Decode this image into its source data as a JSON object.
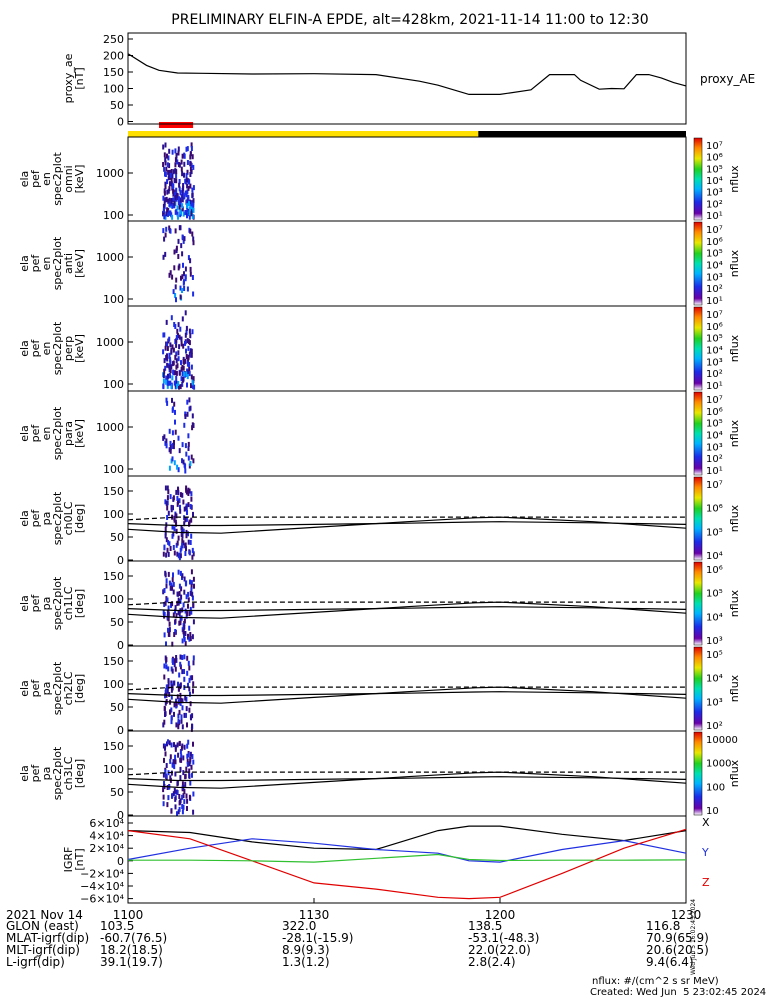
{
  "title": "PRELIMINARY ELFIN-A EPDE, alt=428km, 2021-11-14 11:00 to 12:30",
  "footer": {
    "units": "nflux: #/(cm^2 s sr MeV)",
    "created": "Created: Wed Jun  5 23:02:45 2024",
    "side_stamp": "Wed Jun  5 16:02:45 2024"
  },
  "time_axis": {
    "date_label": "2021 Nov 14",
    "ticks": [
      "1100",
      "1130",
      "1200",
      "1230"
    ],
    "rows": [
      {
        "label": "GLON (east)",
        "values": [
          "103.5",
          "322.0",
          "138.5",
          "116.8"
        ]
      },
      {
        "label": "MLAT-igrf(dip)",
        "values": [
          "-60.7(76.5)",
          "-28.1(-15.9)",
          "-53.1(-48.3)",
          "70.9(65.9)"
        ]
      },
      {
        "label": "MLT-igrf(dip)",
        "values": [
          "18.2(18.5)",
          "8.9(9.3)",
          "22.0(22.0)",
          "20.6(20.5)"
        ]
      },
      {
        "label": "L-igrf(dip)",
        "values": [
          "39.1(19.7)",
          "1.3(1.2)",
          "2.8(2.4)",
          "9.4(6.4)"
        ]
      }
    ]
  },
  "colors": {
    "sunlight_bar": "#ffe000",
    "shadow_bar": "#000000",
    "science_zone_bar": "#ff0000",
    "igrf_x": "#000000",
    "igrf_y": "#2030e0",
    "igrf_z": "#e00000",
    "igrf_total": "#30c030"
  },
  "panels": [
    {
      "id": "proxy_ae",
      "ylabel": [
        "proxy_ae",
        "[nT]"
      ],
      "right_label": "proxy_AE",
      "yticks": [
        "250",
        "200",
        "150",
        "100",
        "50",
        "0"
      ]
    },
    {
      "id": "en_omni",
      "ylabel": [
        "ela",
        "pef",
        "en",
        "spec2plot",
        "omni",
        "[keV]"
      ],
      "yticks": [
        "1000",
        "100"
      ],
      "cbar_label": "nflux",
      "cbar_ticks": [
        "10⁷",
        "10⁶",
        "10⁵",
        "10⁴",
        "10³",
        "10²",
        "10¹"
      ]
    },
    {
      "id": "en_anti",
      "ylabel": [
        "ela",
        "pef",
        "en",
        "spec2plot",
        "anti",
        "[keV]"
      ],
      "yticks": [
        "1000",
        "100"
      ],
      "cbar_label": "nflux",
      "cbar_ticks": [
        "10⁷",
        "10⁶",
        "10⁵",
        "10⁴",
        "10³",
        "10²",
        "10¹"
      ]
    },
    {
      "id": "en_perp",
      "ylabel": [
        "ela",
        "pef",
        "en",
        "spec2plot",
        "perp",
        "[keV]"
      ],
      "yticks": [
        "1000",
        "100"
      ],
      "cbar_label": "nflux",
      "cbar_ticks": [
        "10⁷",
        "10⁶",
        "10⁵",
        "10⁴",
        "10³",
        "10²",
        "10¹"
      ]
    },
    {
      "id": "en_para",
      "ylabel": [
        "ela",
        "pef",
        "en",
        "spec2plot",
        "para",
        "[keV]"
      ],
      "yticks": [
        "1000",
        "100"
      ],
      "cbar_label": "nflux",
      "cbar_ticks": [
        "10⁷",
        "10⁶",
        "10⁵",
        "10⁴",
        "10³",
        "10²",
        "10¹"
      ]
    },
    {
      "id": "pa_ch0",
      "ylabel": [
        "ela",
        "pef",
        "pa",
        "spec2plot",
        "ch0LC",
        "[deg]"
      ],
      "yticks": [
        "150",
        "100",
        "50",
        "0"
      ],
      "cbar_label": "nflux",
      "cbar_ticks": [
        "10⁷",
        "10⁶",
        "10⁵",
        "10⁴"
      ]
    },
    {
      "id": "pa_ch1",
      "ylabel": [
        "ela",
        "pef",
        "pa",
        "spec2plot",
        "ch1LC",
        "[deg]"
      ],
      "yticks": [
        "150",
        "100",
        "50",
        "0"
      ],
      "cbar_label": "nflux",
      "cbar_ticks": [
        "10⁶",
        "10⁵",
        "10⁴",
        "10³"
      ]
    },
    {
      "id": "pa_ch2",
      "ylabel": [
        "ela",
        "pef",
        "pa",
        "spec2plot",
        "ch2LC",
        "[deg]"
      ],
      "yticks": [
        "150",
        "100",
        "50",
        "0"
      ],
      "cbar_label": "nflux",
      "cbar_ticks": [
        "10⁵",
        "10⁴",
        "10³",
        "10²"
      ]
    },
    {
      "id": "pa_ch3",
      "ylabel": [
        "ela",
        "pef",
        "pa",
        "spec2plot",
        "ch3LC",
        "[deg]"
      ],
      "yticks": [
        "150",
        "100",
        "50",
        "0"
      ],
      "cbar_label": "nflux",
      "cbar_ticks": [
        "10000",
        "1000",
        "100",
        "10"
      ]
    },
    {
      "id": "igrf",
      "ylabel": [
        "IGRF",
        "[nT]"
      ],
      "yticks": [
        "6×10⁴",
        "4×10⁴",
        "2×10⁴",
        "0",
        "−2×10⁴",
        "−4×10⁴",
        "−6×10⁴"
      ],
      "legend": [
        "X",
        "Y",
        "Z"
      ]
    }
  ],
  "chart_data": [
    {
      "type": "line",
      "title": "PRELIMINARY ELFIN-A EPDE, alt=428km, 2021-11-14 11:00 to 12:30",
      "ylabel": "proxy_ae [nT]",
      "ylim": [
        0,
        250
      ],
      "x_unit": "minutes after 11:00",
      "x": [
        0,
        3,
        5,
        8,
        12,
        20,
        30,
        40,
        47,
        50,
        55,
        60,
        65,
        68,
        70,
        72,
        73,
        76,
        78,
        80,
        82,
        84,
        86,
        88,
        90
      ],
      "values": [
        205,
        170,
        155,
        147,
        146,
        144,
        145,
        142,
        122,
        110,
        82,
        82,
        96,
        142,
        142,
        142,
        125,
        98,
        100,
        99,
        142,
        142,
        132,
        118,
        108
      ],
      "series": [
        {
          "name": "proxy_AE"
        }
      ]
    },
    {
      "type": "line",
      "title": "IGRF [nT]",
      "x_unit": "minutes after 11:00",
      "ylim": [
        -60000,
        60000
      ],
      "x": [
        0,
        10,
        20,
        30,
        40,
        50,
        55,
        60,
        70,
        80,
        90
      ],
      "series": [
        {
          "name": "X",
          "values": [
            48000,
            45000,
            30000,
            20000,
            18000,
            48000,
            55000,
            55000,
            42000,
            32000,
            48000
          ]
        },
        {
          "name": "Y",
          "values": [
            2000,
            20000,
            35000,
            28000,
            18000,
            12000,
            0,
            -2000,
            18000,
            32000,
            12000
          ]
        },
        {
          "name": "Z",
          "values": [
            48000,
            35000,
            0,
            -35000,
            -45000,
            -58000,
            -60000,
            -58000,
            -20000,
            20000,
            50000
          ]
        },
        {
          "values": [
            1000,
            1000,
            0,
            -2000,
            4000,
            10000,
            2000,
            500,
            1000,
            1000,
            1500
          ]
        }
      ]
    },
    {
      "type": "line",
      "title": "pitch-angle loss/anti-loss cone [deg]",
      "x_unit": "minutes after 11:00",
      "ylim": [
        0,
        180
      ],
      "x": [
        0,
        8,
        15,
        30,
        45,
        56,
        60,
        75,
        90
      ],
      "series": [
        {
          "values": [
            105,
            112,
            112,
            112,
            112,
            112,
            112,
            112,
            112
          ]
        },
        {
          "values": [
            80,
            72,
            70,
            85,
            100,
            110,
            112,
            100,
            83
          ]
        },
        {
          "values": [
            95,
            90,
            90,
            93,
            96,
            99,
            100,
            97,
            93
          ]
        }
      ]
    },
    {
      "type": "bar",
      "title": "ELFIN-A orbit status bars",
      "x_unit": "minutes after 11:00",
      "series": [
        {
          "name": "sunlight",
          "values": [
            0,
            56.5
          ]
        },
        {
          "name": "shadow",
          "values": [
            56.5,
            90
          ]
        },
        {
          "name": "science zone",
          "values": [
            5,
            10.5
          ]
        }
      ]
    }
  ]
}
